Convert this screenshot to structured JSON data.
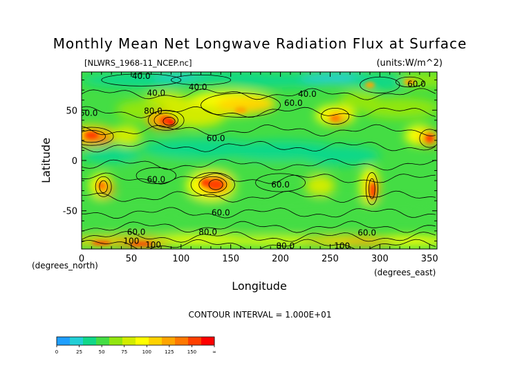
{
  "chart_data": {
    "type": "heatmap",
    "title": "Monthly Mean Net Longwave Radiation Flux at Surface",
    "subtitle_left": "[NLWRS_1968-11_NCEP.nc]",
    "subtitle_right": "(units:W/m^2)",
    "xlabel": "Longitude",
    "ylabel": "Latitude",
    "x_unit": "(degrees_east)",
    "y_unit": "(degrees_north)",
    "xlim": [
      0,
      357.5
    ],
    "ylim": [
      -88,
      88
    ],
    "x_ticks": [
      0,
      50,
      100,
      150,
      200,
      250,
      300,
      350
    ],
    "y_ticks": [
      50,
      0,
      -50
    ],
    "contour_interval_text": "CONTOUR INTERVAL = 1.000E+01",
    "contour_labels": [
      {
        "lon": 60,
        "lat": 84,
        "text": "40.0"
      },
      {
        "lon": 75,
        "lat": 67,
        "text": "40.0"
      },
      {
        "lon": 117,
        "lat": 73,
        "text": "40.0"
      },
      {
        "lon": 227,
        "lat": 66,
        "text": "40.0"
      },
      {
        "lon": 337,
        "lat": 76,
        "text": "60.0"
      },
      {
        "lon": 213,
        "lat": 57,
        "text": "60.0"
      },
      {
        "lon": 7,
        "lat": 47,
        "text": "60.0"
      },
      {
        "lon": 72,
        "lat": 49,
        "text": "80.0"
      },
      {
        "lon": 135,
        "lat": 22,
        "text": "60.0"
      },
      {
        "lon": 75,
        "lat": -19,
        "text": "60.0"
      },
      {
        "lon": 200,
        "lat": -24,
        "text": "60.0"
      },
      {
        "lon": 140,
        "lat": -52,
        "text": "60.0"
      },
      {
        "lon": 55,
        "lat": -71,
        "text": "60.0"
      },
      {
        "lon": 127,
        "lat": -71,
        "text": "80.0"
      },
      {
        "lon": 287,
        "lat": -72,
        "text": "60.0"
      },
      {
        "lon": 50,
        "lat": -80,
        "text": "100"
      },
      {
        "lon": 72,
        "lat": -84,
        "text": "100"
      },
      {
        "lon": 205,
        "lat": -85,
        "text": "80.0"
      },
      {
        "lon": 262,
        "lat": -85,
        "text": "100"
      }
    ],
    "colorbar": {
      "ticks": [
        "0",
        "25",
        "50",
        "75",
        "100",
        "125",
        "150",
        "∞"
      ],
      "colors": [
        "#1f9fff",
        "#22cfd6",
        "#11d889",
        "#44dd44",
        "#92e60f",
        "#d2ec00",
        "#ffff00",
        "#ffd200",
        "#ffa500",
        "#ff7800",
        "#ff4000",
        "#ff0000"
      ]
    }
  }
}
